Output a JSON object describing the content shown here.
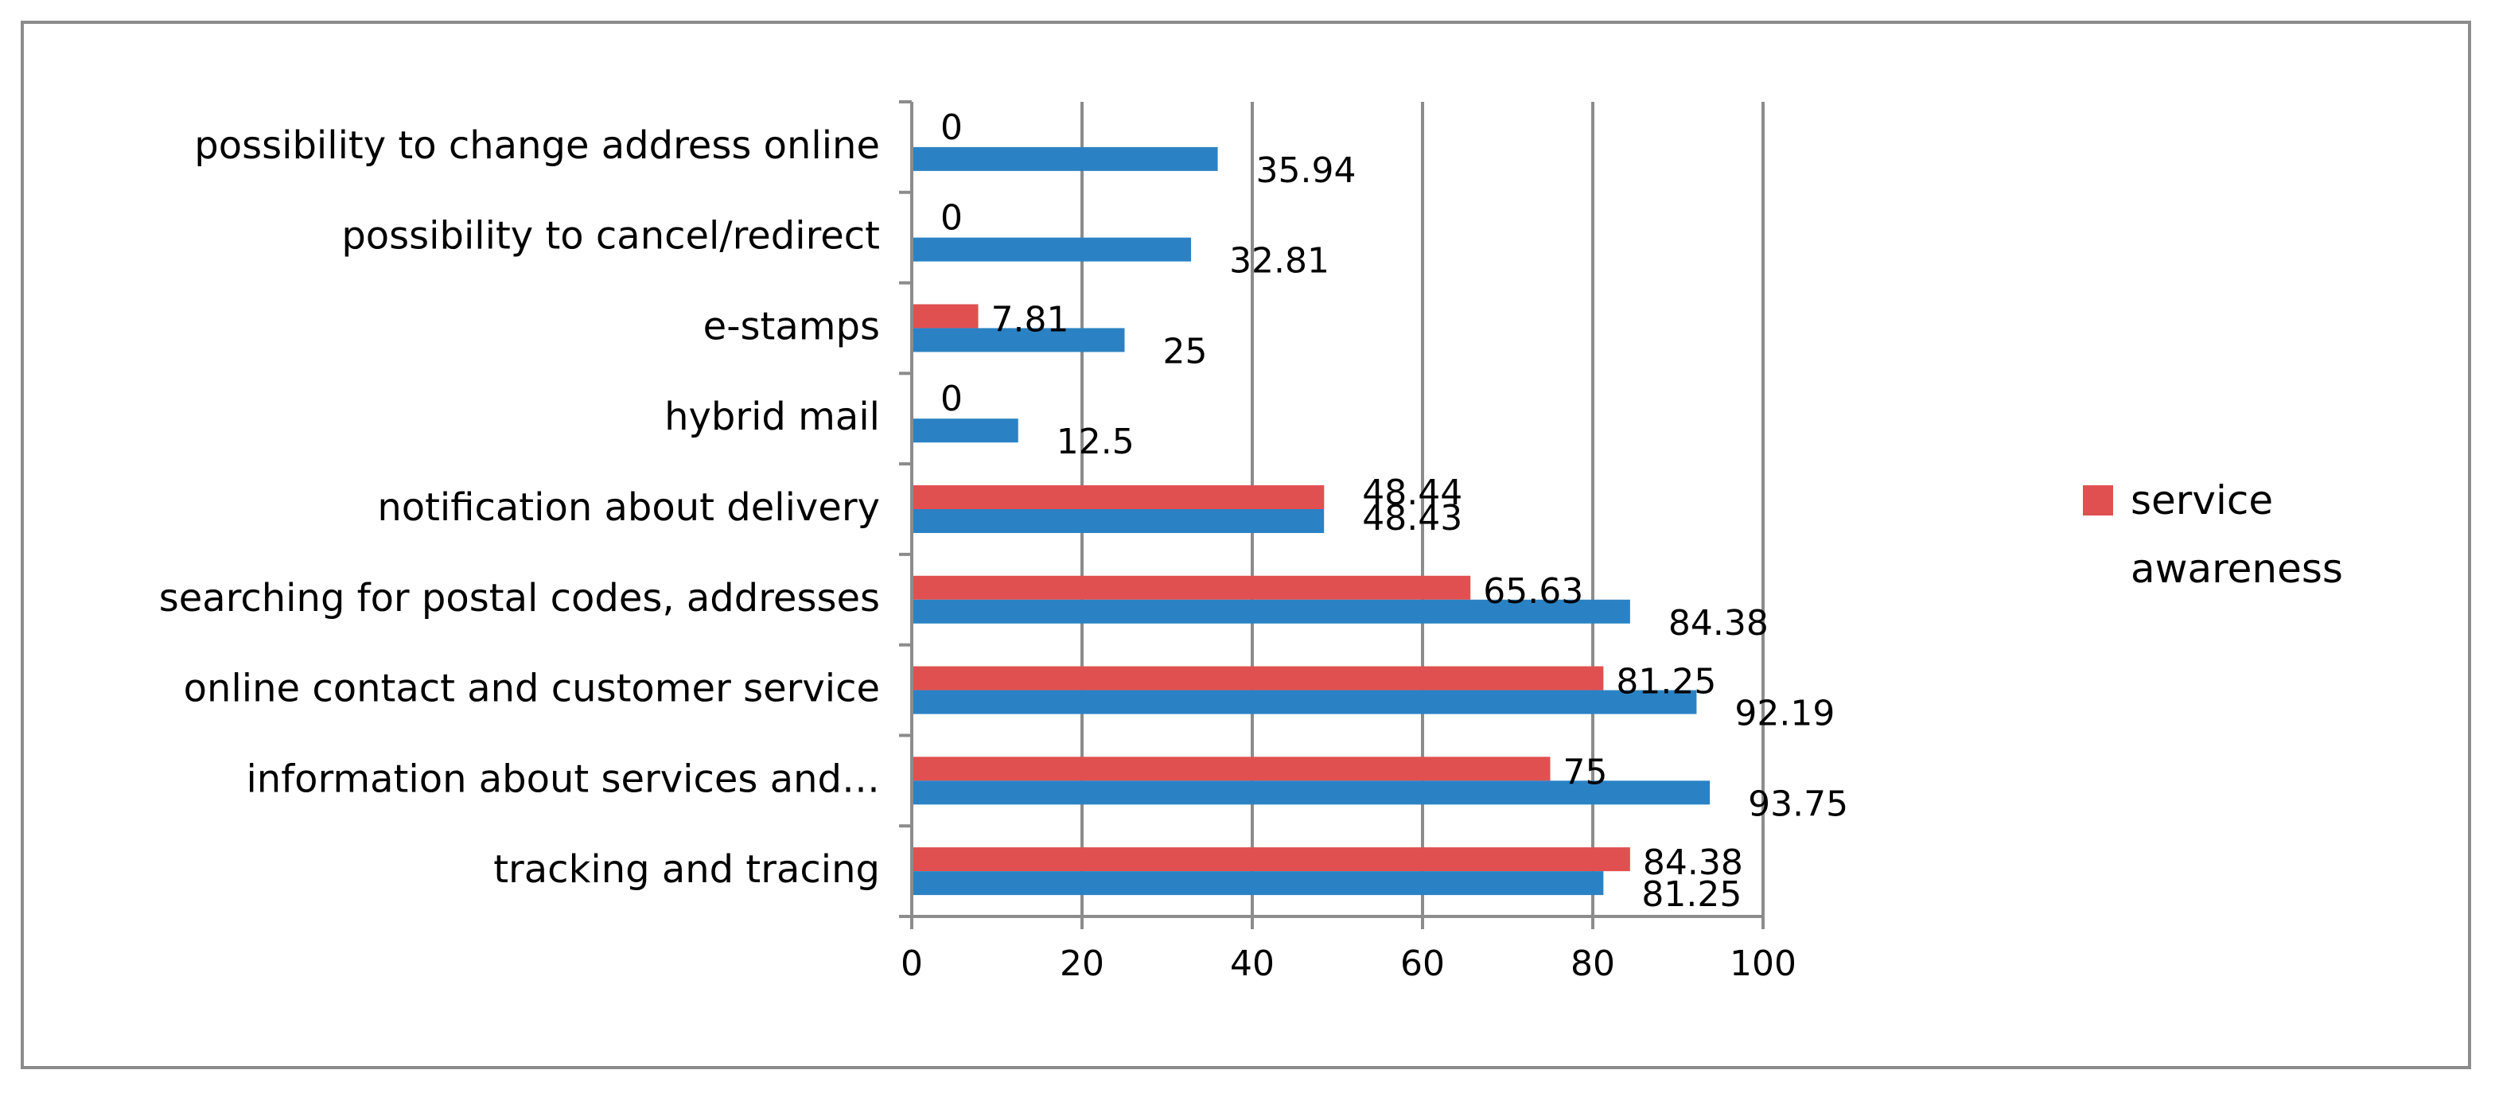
{
  "chart_data": {
    "type": "bar",
    "orientation": "horizontal",
    "title": "",
    "xlabel": "",
    "ylabel": "",
    "xlim": [
      0,
      100
    ],
    "x_ticks": [
      0,
      20,
      40,
      60,
      80,
      100
    ],
    "grid": true,
    "legend_position": "right",
    "categories": [
      "tracking and tracing",
      "information about services and…",
      "online contact and customer service",
      "searching for postal codes, addresses",
      "notification about delivery",
      "hybrid mail",
      "e-stamps",
      "possibility to cancel/redirect",
      "possibility to change address online"
    ],
    "series": [
      {
        "name": "service awareness",
        "color": "#e05050",
        "values": [
          84.38,
          75,
          81.25,
          65.63,
          48.44,
          0,
          7.81,
          0,
          0
        ],
        "labels": [
          "84.38",
          "75",
          "81.25",
          "65.63",
          "48.44",
          "0",
          "7.81",
          "0",
          "0"
        ]
      },
      {
        "name": "",
        "color": "#2a82c4",
        "values": [
          81.25,
          93.75,
          92.19,
          84.38,
          48.43,
          12.5,
          25,
          32.81,
          35.94
        ],
        "labels": [
          "81.25",
          "93.75",
          "92.19",
          "84.38",
          "48.43",
          "12.5",
          "25",
          "32.81",
          "35.94"
        ]
      }
    ],
    "legend": [
      {
        "label_line1": "service",
        "label_line2": "awareness",
        "color": "#e05050"
      }
    ]
  }
}
